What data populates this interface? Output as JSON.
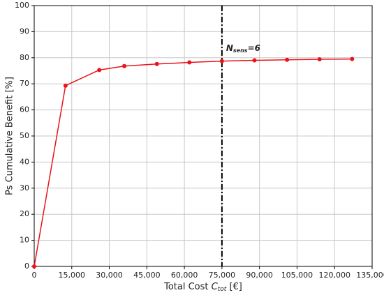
{
  "chart_data": {
    "type": "line",
    "x_label": {
      "text": "Total Cost",
      "var": "C",
      "sub": "tot",
      "unit": "[€]"
    },
    "y_label": "Ps Cumulative Benefit [%]",
    "x": [
      0,
      12500,
      26000,
      36000,
      49000,
      62000,
      75000,
      88000,
      101000,
      114000,
      127000
    ],
    "series": [
      {
        "name": "Ps Cumulative Benefit",
        "color": "#e8141a",
        "values": [
          0,
          69.3,
          75.3,
          76.8,
          77.6,
          78.2,
          78.7,
          79.0,
          79.2,
          79.4,
          79.5
        ]
      }
    ],
    "xlim": [
      0,
      135000
    ],
    "xticks": [
      0,
      {
        "value": 15000,
        "label": "15,000"
      },
      {
        "value": 30000,
        "label": "30,000"
      },
      {
        "value": 45000,
        "label": "45,000"
      },
      {
        "value": 60000,
        "label": "60,000"
      },
      {
        "value": 75000,
        "label": "75,000"
      },
      {
        "value": 90000,
        "label": "90,000"
      },
      {
        "value": 105000,
        "label": "105,000"
      },
      {
        "value": 120000,
        "label": "120,000"
      },
      {
        "value": 135000,
        "label": "135,000"
      }
    ],
    "ylim": [
      0,
      100
    ],
    "yticks": [
      0,
      10,
      20,
      30,
      40,
      50,
      60,
      70,
      80,
      90,
      100
    ],
    "grid": true,
    "vline": {
      "x": 75000,
      "label": {
        "main": "N",
        "sub": "sens",
        "suffix": "=6"
      }
    }
  }
}
